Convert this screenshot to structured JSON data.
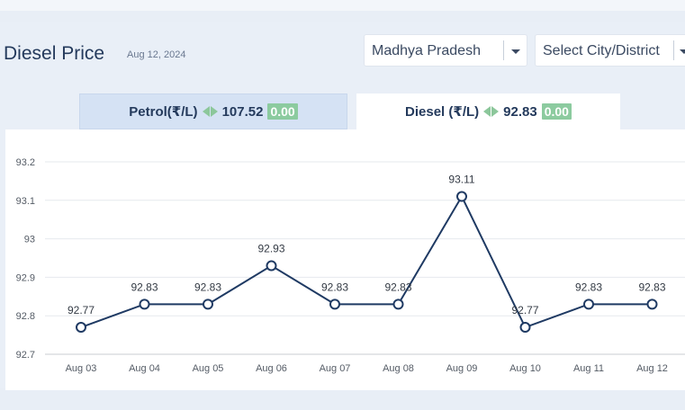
{
  "header": {
    "title": "Diesel Price",
    "date": "Aug 12, 2024"
  },
  "filters": {
    "state": "Madhya Pradesh",
    "city": "Select City/District"
  },
  "tabs": {
    "petrol": {
      "label": "Petrol(₹/L)",
      "price": "107.52",
      "change": "0.00"
    },
    "diesel": {
      "label": "Diesel (₹/L)",
      "price": "92.83",
      "change": "0.00",
      "active": true
    }
  },
  "colors": {
    "line": "#1f3a63",
    "change_badge": "#8ccb9f",
    "active_tab": "#ffffff",
    "inactive_tab": "#d5e2f4"
  },
  "chart_data": {
    "type": "line",
    "categories": [
      "Aug 03",
      "Aug 04",
      "Aug 05",
      "Aug 06",
      "Aug 07",
      "Aug 08",
      "Aug 09",
      "Aug 10",
      "Aug 11",
      "Aug 12"
    ],
    "values": [
      92.77,
      92.83,
      92.83,
      92.93,
      92.83,
      92.83,
      93.11,
      92.77,
      92.83,
      92.83
    ],
    "data_labels": [
      "92.77",
      "92.83",
      "92.83",
      "92.93",
      "92.83",
      "92.83",
      "93.11",
      "92.77",
      "92.83",
      "92.83"
    ],
    "y_ticks": [
      "92.7",
      "92.8",
      "92.9",
      "93",
      "93.1",
      "93.2"
    ],
    "ylim": [
      92.7,
      93.2
    ],
    "grid": true
  }
}
